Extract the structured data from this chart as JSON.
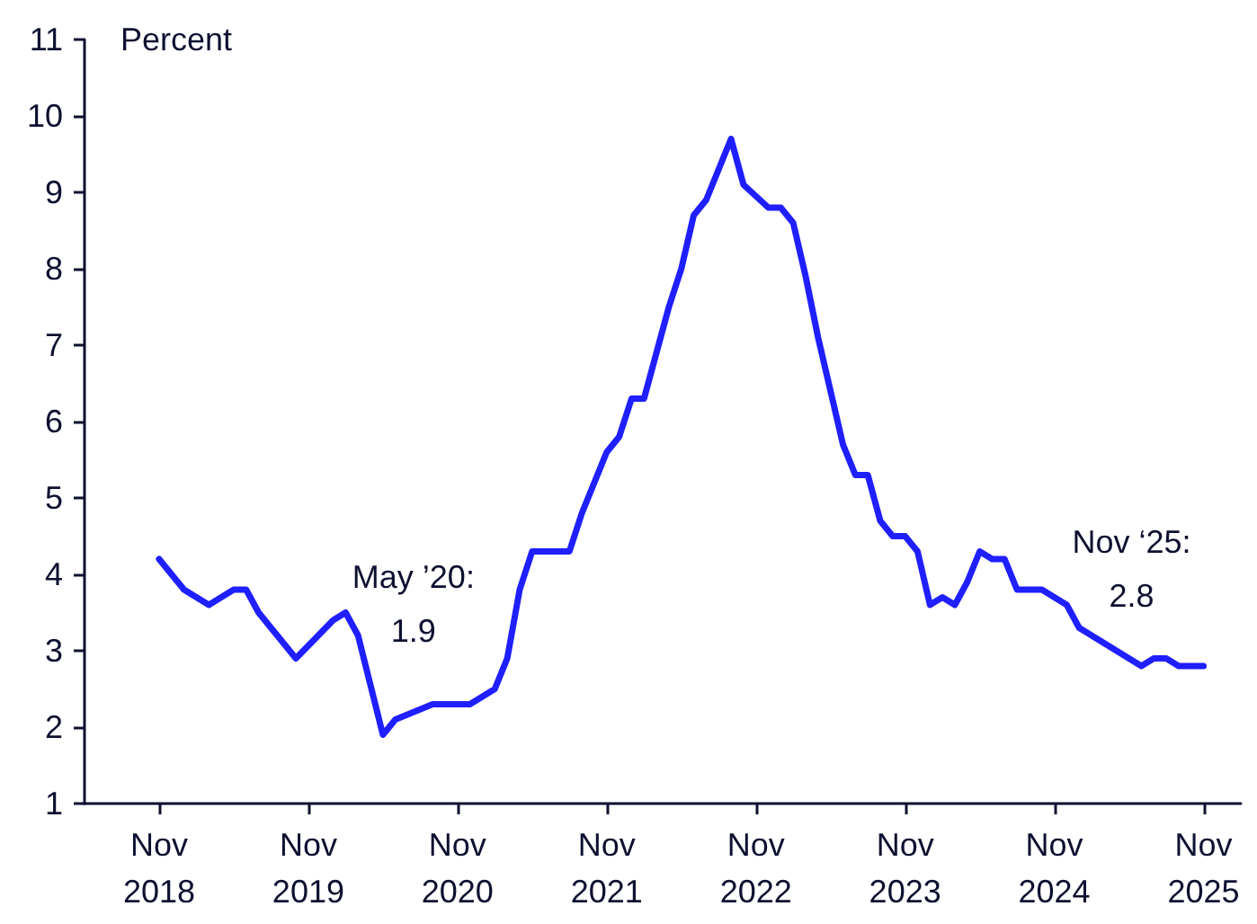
{
  "chart_data": {
    "type": "line",
    "ylabel": "Percent",
    "x": [
      "2018-11",
      "2019-01",
      "2019-03",
      "2019-05",
      "2019-06",
      "2019-07",
      "2019-10",
      "2020-01",
      "2020-02",
      "2020-03",
      "2020-05",
      "2020-06",
      "2020-09",
      "2020-11",
      "2020-12",
      "2021-02",
      "2021-03",
      "2021-04",
      "2021-05",
      "2021-08",
      "2021-09",
      "2021-10",
      "2021-11",
      "2021-12",
      "2022-01",
      "2022-02",
      "2022-03",
      "2022-04",
      "2022-05",
      "2022-06",
      "2022-07",
      "2022-08",
      "2022-09",
      "2022-10",
      "2022-12",
      "2023-01",
      "2023-02",
      "2023-03",
      "2023-04",
      "2023-05",
      "2023-06",
      "2023-07",
      "2023-08",
      "2023-09",
      "2023-10",
      "2023-11",
      "2023-12",
      "2024-01",
      "2024-02",
      "2024-03",
      "2024-04",
      "2024-05",
      "2024-06",
      "2024-07",
      "2024-08",
      "2024-10",
      "2024-11",
      "2024-12",
      "2025-01",
      "2025-03",
      "2025-04",
      "2025-06",
      "2025-07",
      "2025-08",
      "2025-09",
      "2025-11"
    ],
    "series": [
      {
        "color": "#1f1fff",
        "values": [
          4.2,
          3.8,
          3.6,
          3.8,
          3.8,
          3.5,
          2.9,
          3.4,
          3.5,
          3.2,
          1.9,
          2.1,
          2.3,
          2.3,
          2.3,
          2.5,
          2.9,
          3.8,
          4.3,
          4.3,
          4.8,
          5.2,
          5.6,
          5.8,
          6.3,
          6.3,
          6.9,
          7.5,
          8.0,
          8.7,
          8.9,
          9.3,
          9.7,
          9.1,
          8.8,
          8.8,
          8.6,
          7.9,
          7.1,
          6.4,
          5.7,
          5.3,
          5.3,
          4.7,
          4.5,
          4.5,
          4.3,
          3.6,
          3.7,
          3.6,
          3.9,
          4.3,
          4.2,
          4.2,
          3.8,
          3.8,
          3.7,
          3.6,
          3.3,
          3.1,
          3.0,
          2.8,
          2.9,
          2.9,
          2.8,
          2.8
        ]
      }
    ],
    "xlim": [
      "2018-05",
      "2026-02"
    ],
    "xticks": [
      {
        "value": "2018-11",
        "label": "Nov\n2018"
      },
      {
        "value": "2019-11",
        "label": "Nov\n2019"
      },
      {
        "value": "2020-11",
        "label": "Nov\n2020"
      },
      {
        "value": "2021-11",
        "label": "Nov\n2021"
      },
      {
        "value": "2022-11",
        "label": "Nov\n2022"
      },
      {
        "value": "2023-11",
        "label": "Nov\n2023"
      },
      {
        "value": "2024-11",
        "label": "Nov\n2024"
      },
      {
        "value": "2025-11",
        "label": "Nov\n2025"
      }
    ],
    "ylim": [
      1,
      11
    ],
    "yticks": [
      1,
      2,
      3,
      4,
      5,
      6,
      7,
      8,
      9,
      10,
      11
    ],
    "grid": false,
    "marker": "none",
    "line_style": "solid",
    "annotations": [
      {
        "text": "May ’20:\n1.9",
        "x": "2020-05",
        "y": 1.9
      },
      {
        "text": "Nov ‘25:\n2.8",
        "x": "2025-11",
        "y": 2.8
      }
    ]
  }
}
